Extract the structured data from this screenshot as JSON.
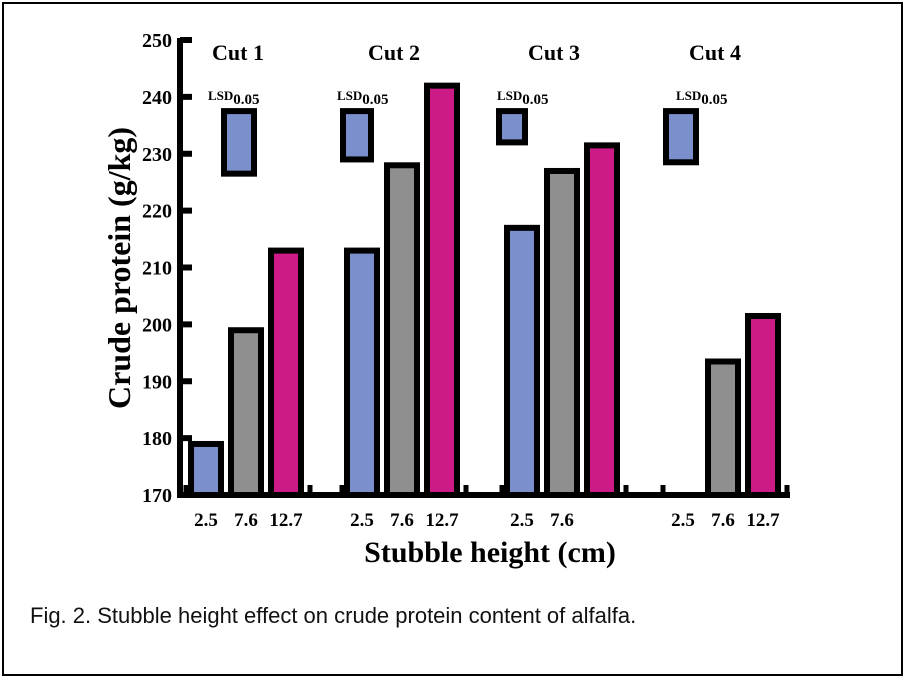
{
  "chart_data": {
    "type": "bar",
    "ylabel": "Crude protein (g/kg)",
    "xlabel": "Stubble height (cm)",
    "ylim": [
      170,
      250
    ],
    "yticks": [
      170,
      180,
      190,
      200,
      210,
      220,
      230,
      240,
      250
    ],
    "grid": false,
    "colors": {
      "2.5": "#7b8fcc",
      "7.6": "#8f8f8f",
      "12.7": "#cc1a86"
    },
    "groups": [
      {
        "name": "Cut 1",
        "tick_labels": [
          "2.5",
          "7.6",
          "12.7"
        ],
        "values": [
          179.5,
          199.5,
          213.5
        ],
        "lsd_label": "LSD",
        "lsd_sub": "0.05",
        "lsd_range": [
          226.5,
          237.5
        ]
      },
      {
        "name": "Cut 2",
        "tick_labels": [
          "2.5",
          "7.6",
          "12.7"
        ],
        "values": [
          213.5,
          228.5,
          242.5
        ],
        "lsd_label": "LSD",
        "lsd_sub": "0.05",
        "lsd_range": [
          229,
          237.5
        ]
      },
      {
        "name": "Cut 3",
        "tick_labels": [
          "2.5",
          "7.6",
          ""
        ],
        "values": [
          217.5,
          227.5,
          232
        ],
        "lsd_label": "LSD",
        "lsd_sub": "0.05",
        "lsd_range": [
          232,
          237.5
        ]
      },
      {
        "name": "Cut 4",
        "tick_labels": [
          "2.5",
          "7.6",
          "12.7"
        ],
        "values": [
          null,
          194,
          202
        ],
        "lsd_label": "LSD",
        "lsd_sub": "0.05",
        "lsd_range": [
          228.5,
          237.5
        ]
      }
    ]
  },
  "caption": "Fig. 2.  Stubble height effect on crude protein content of alfalfa."
}
